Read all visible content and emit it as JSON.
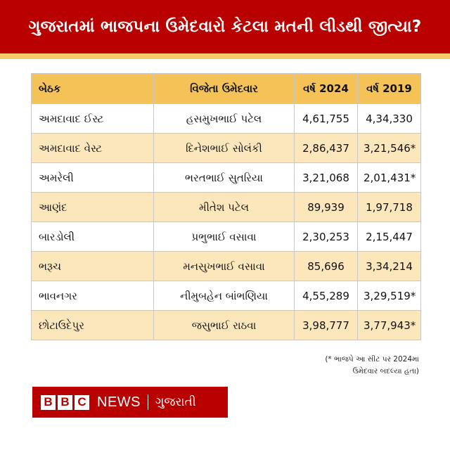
{
  "header": {
    "title": "ગુજરાતમાં ભાજપના ઉમેદવારો કેટલા મતની લીડથી જીત્યા?"
  },
  "table": {
    "columns": [
      "બેઠક",
      "વિજેતા ઉમેદવાર",
      "વર્ષ 2024",
      "વર્ષ 2019"
    ],
    "rows": [
      {
        "seat": "અમદાવાદ ઈસ્ટ",
        "candidate": "હસમુખભાઈ પટેલ",
        "y2024": "4,61,755",
        "y2019": "4,34,330"
      },
      {
        "seat": "અમદાવાદ વેસ્ટ",
        "candidate": "દિનેશભાઈ સોલંકી",
        "y2024": "2,86,437",
        "y2019": "3,21,546*"
      },
      {
        "seat": "અમરેલી",
        "candidate": "ભરતભાઈ સુતરિયા",
        "y2024": "3,21,068",
        "y2019": "2,01,431*"
      },
      {
        "seat": "આણંદ",
        "candidate": "મીતેશ પટેલ",
        "y2024": "89,939",
        "y2019": "1,97,718"
      },
      {
        "seat": "બારડોલી",
        "candidate": "પ્રભુભાઈ વસાવા",
        "y2024": "2,30,253",
        "y2019": "2,15,447"
      },
      {
        "seat": "ભરૂચ",
        "candidate": "મનસુખભાઈ વસાવા",
        "y2024": "85,696",
        "y2019": "3,34,214"
      },
      {
        "seat": "ભાવનગર",
        "candidate": "નીમુબહેન બાંભણિયા",
        "y2024": "4,55,289",
        "y2019": "3,29,519*"
      },
      {
        "seat": "છોટાઉદેપુર",
        "candidate": "જસુભાઈ રાઠવા",
        "y2024": "3,98,777",
        "y2019": "3,77,943*"
      }
    ]
  },
  "footnote": {
    "line1": "(* ભાજપે આ સીટ પર 2024માં",
    "line2": "ઉમેદવાર બદલ્યા હતા)"
  },
  "branding": {
    "logo_letters": [
      "B",
      "B",
      "C"
    ],
    "news": "NEWS",
    "language": "ગુજરાતી"
  },
  "colors": {
    "brand_red": "#b80000",
    "header_accent": "#f3c96a",
    "table_header": "#f4c257",
    "row_alt": "#fce7bd"
  }
}
